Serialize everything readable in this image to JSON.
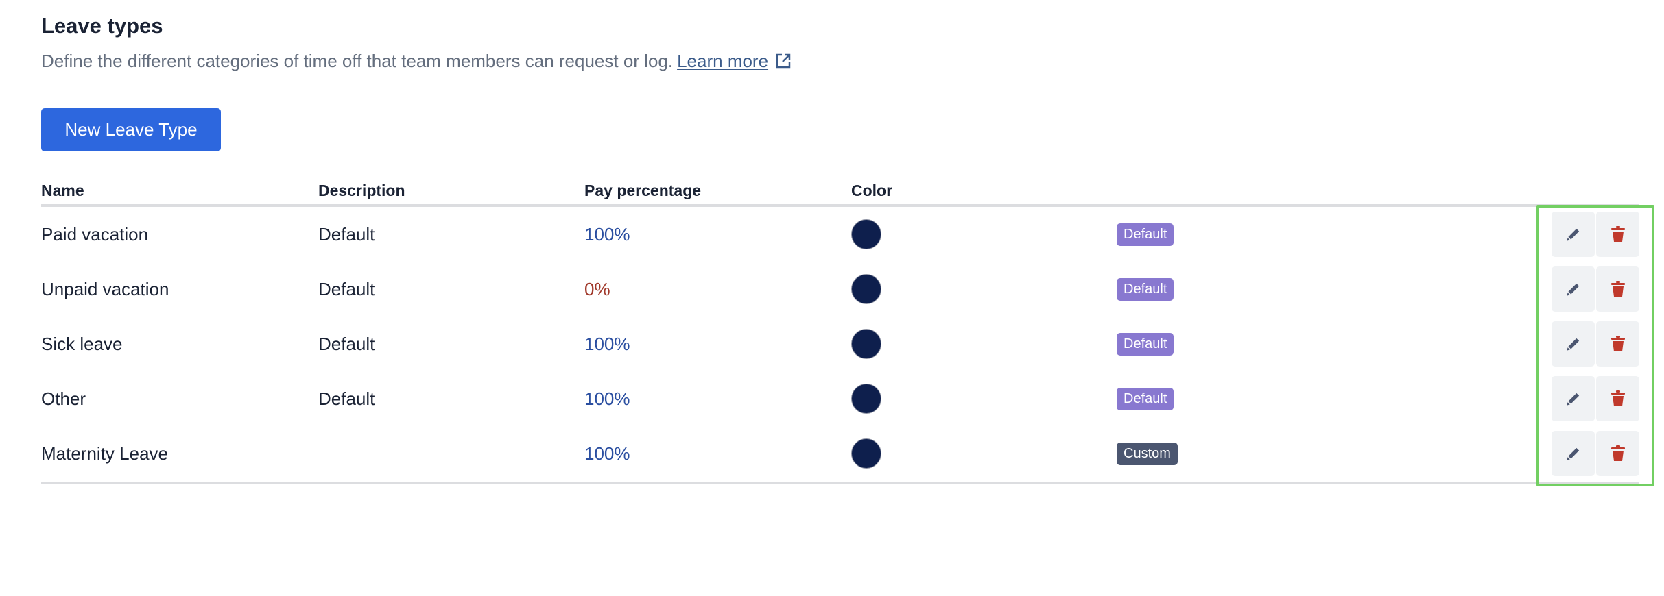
{
  "header": {
    "title": "Leave types",
    "description": "Define the different categories of time off that team members can request or log.",
    "learn_more": "Learn more"
  },
  "toolbar": {
    "new_label": "New Leave Type"
  },
  "table": {
    "columns": [
      "Name",
      "Description",
      "Pay percentage",
      "Color"
    ],
    "rows": [
      {
        "name": "Paid vacation",
        "description": "Default",
        "pay": "100%",
        "color": "#0e1f4d",
        "badge": "Default"
      },
      {
        "name": "Unpaid vacation",
        "description": "Default",
        "pay": "0%",
        "color": "#0e1f4d",
        "badge": "Default"
      },
      {
        "name": "Sick leave",
        "description": "Default",
        "pay": "100%",
        "color": "#0e1f4d",
        "badge": "Default"
      },
      {
        "name": "Other",
        "description": "Default",
        "pay": "100%",
        "color": "#0e1f4d",
        "badge": "Default"
      },
      {
        "name": "Maternity Leave",
        "description": "",
        "pay": "100%",
        "color": "#0e1f4d",
        "badge": "Custom"
      }
    ]
  },
  "colors": {
    "accent": "#2d67de",
    "default_badge": "#8878d0",
    "custom_badge": "#4b5670",
    "delete": "#c0392b",
    "edit": "#4b5670",
    "highlight": "#72cf62"
  },
  "icons": {
    "edit": "pencil-icon",
    "delete": "trash-icon",
    "external": "external-link-icon"
  }
}
